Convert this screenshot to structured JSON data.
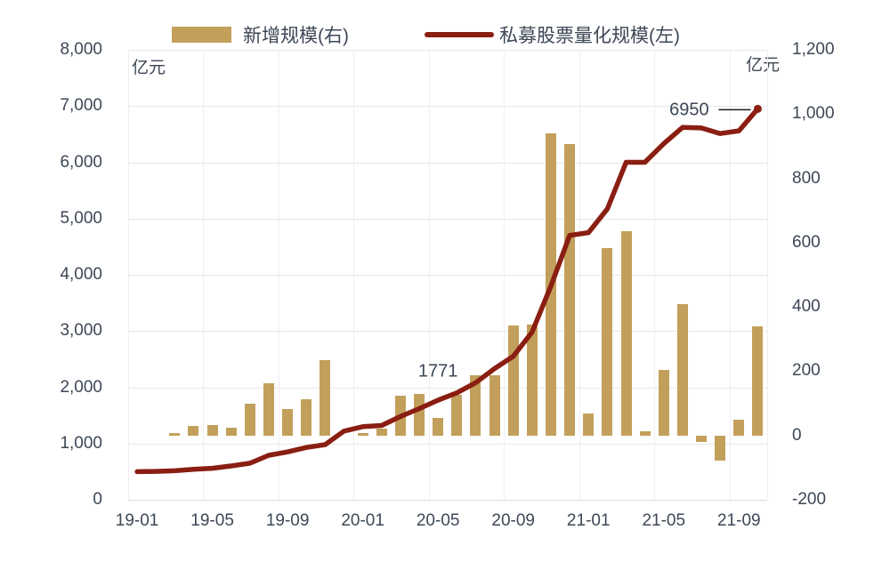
{
  "chart_data": {
    "type": "bar+line",
    "categories": [
      "19-01",
      "19-02",
      "19-03",
      "19-04",
      "19-05",
      "19-06",
      "19-07",
      "19-08",
      "19-09",
      "19-10",
      "19-11",
      "19-12",
      "20-01",
      "20-02",
      "20-03",
      "20-04",
      "20-05",
      "20-06",
      "20-07",
      "20-08",
      "20-09",
      "20-10",
      "20-11",
      "20-12",
      "21-01",
      "21-02",
      "21-03",
      "21-04",
      "21-05",
      "21-06",
      "21-07",
      "21-08",
      "21-09",
      "21-10"
    ],
    "x_shown_ticks": [
      "19-01",
      "19-05",
      "19-09",
      "20-01",
      "20-05",
      "20-09",
      "21-01",
      "21-05",
      "21-09"
    ],
    "series": [
      {
        "name": "新增规模(右)",
        "type": "bar",
        "axis": "right",
        "color": "#C2A05C",
        "values": [
          null,
          null,
          8,
          30,
          32,
          24,
          99,
          162,
          82,
          113,
          234,
          null,
          8,
          22,
          124,
          129,
          54,
          126,
          187,
          188,
          342,
          345,
          940,
          906,
          68,
          583,
          635,
          13,
          204,
          408,
          -20,
          -79,
          50,
          340
        ]
      },
      {
        "name": "私募股票量化规模(左)",
        "type": "line",
        "axis": "left",
        "color": "#8A1E12",
        "values": [
          500,
          505,
          515,
          540,
          560,
          600,
          650,
          790,
          850,
          930,
          980,
          1220,
          1300,
          1320,
          1480,
          1620,
          1771,
          1900,
          2080,
          2330,
          2550,
          2980,
          3800,
          4700,
          4750,
          5170,
          6000,
          6000,
          6330,
          6620,
          6610,
          6510,
          6560,
          6950
        ]
      }
    ],
    "left_axis": {
      "label": "亿元",
      "min": 0,
      "max": 8000,
      "tick_step": 1000,
      "ticks": [
        "8,000",
        "7,000",
        "6,000",
        "5,000",
        "4,000",
        "3,000",
        "2,000",
        "1,000",
        "0"
      ]
    },
    "right_axis": {
      "label": "亿元",
      "min": -200,
      "max": 1200,
      "tick_step": 200,
      "ticks": [
        "1,200",
        "1,000",
        "800",
        "600",
        "400",
        "200",
        "0",
        "-200"
      ]
    },
    "annotations": [
      {
        "text": "1771",
        "series": "私募股票量化规模(左)",
        "category": "20-05",
        "value": 1771
      },
      {
        "text": "6950",
        "series": "私募股票量化规模(左)",
        "category": "21-10",
        "value": 6950
      }
    ],
    "grid": true,
    "legend_position": "top",
    "text_color": "#3D4756",
    "grid_color": "#E8E8E8",
    "callout_color": "#1A1A1A"
  }
}
